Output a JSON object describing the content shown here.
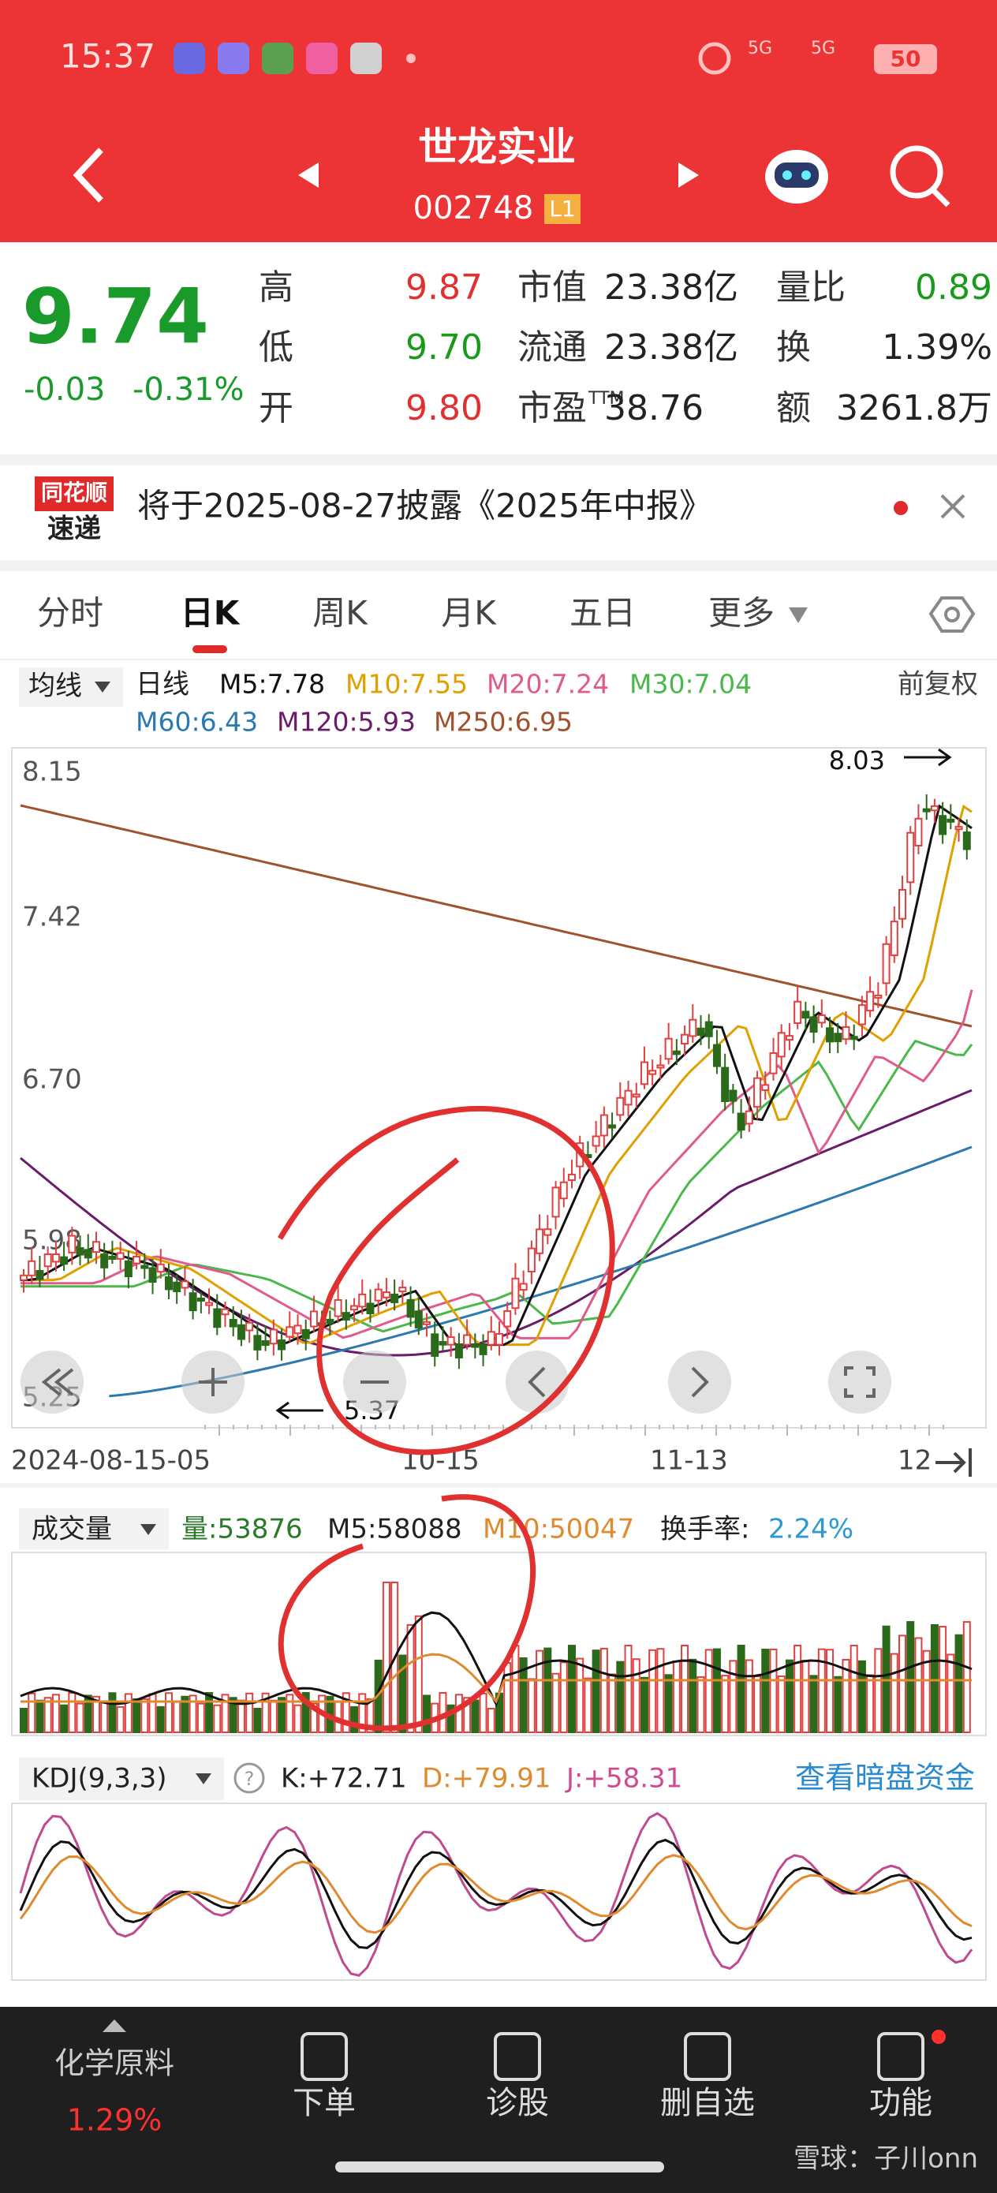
{
  "status": {
    "time": "15:37",
    "net1": "5G",
    "net2": "5G",
    "battery": "50"
  },
  "header": {
    "title": "世龙实业",
    "code": "002748",
    "level": "L1"
  },
  "quote": {
    "price": "9.74",
    "change": "-0.03",
    "percent": "-0.31%",
    "fields": [
      {
        "label": "高",
        "value": "9.87"
      },
      {
        "label": "低",
        "value": "9.70"
      },
      {
        "label": "开",
        "value": "9.80"
      },
      {
        "label": "市值",
        "value": "23.38亿"
      },
      {
        "label": "流通",
        "value": "23.38亿"
      },
      {
        "label": "市盈",
        "sup": "TTM",
        "value": "38.76"
      },
      {
        "label": "量比",
        "value": "0.89"
      },
      {
        "label": "换",
        "value": "1.39%"
      },
      {
        "label": "额",
        "value": "3261.8万"
      }
    ]
  },
  "notice": {
    "brand_top": "同花顺",
    "brand_bottom": "速递",
    "text": "将于2025-08-27披露《2025年中报》"
  },
  "tabs": [
    "分时",
    "日K",
    "周K",
    "月K",
    "五日",
    "更多"
  ],
  "ma_legend": {
    "selector": "均线",
    "kind": "日线",
    "items": [
      "M5:7.78",
      "M10:7.55",
      "M20:7.24",
      "M30:7.04",
      "M60:6.43",
      "M120:5.93",
      "M250:6.95"
    ],
    "adjust": "前复权"
  },
  "kchart": {
    "price_labels": [
      "8.15",
      "7.42",
      "6.70",
      "5.98",
      "5.25"
    ],
    "max_label": "8.03",
    "min_label": "5.37",
    "dates": [
      "2024-08-15-05",
      "10-15",
      "11-13",
      "12"
    ]
  },
  "volume": {
    "selector": "成交量",
    "vol": "量:53876",
    "m5": "M5:58088",
    "m10": "M10:50047",
    "turnover_label": "换手率:",
    "turnover": "2.24%"
  },
  "kdj": {
    "selector": "KDJ(9,3,3)",
    "k": "K:+72.71",
    "d": "D:+79.91",
    "j": "J:+58.31",
    "link": "查看暗盘资金"
  },
  "nav": {
    "sector": "化学原料",
    "sector_change": "1.29%",
    "items": [
      "下单",
      "诊股",
      "删自选",
      "功能"
    ]
  },
  "watermark": "雪球：子川onn"
}
